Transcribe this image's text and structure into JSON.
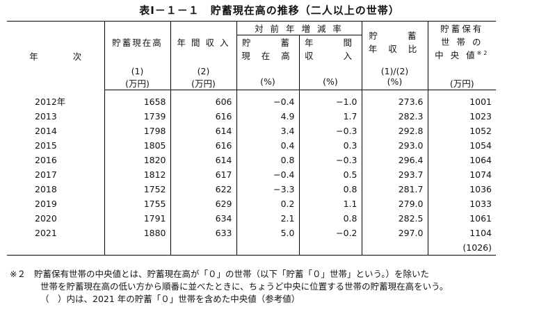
{
  "title": "表Ⅰ－１－１　貯蓄現在高の推移（二人以上の世帯）",
  "header": {
    "year_a": "年",
    "year_b": "次",
    "col_savings": "貯蓄現在高",
    "col_income": "年 間 収 入",
    "group_yoy": "対 前 年 増 減 率",
    "col_yoy_savings_1": "貯　　蓄",
    "col_yoy_savings_2": "現 在 高",
    "col_yoy_income_1": "年　　間",
    "col_yoy_income_2": "収　　入",
    "col_ratio_1": "貯　　蓄",
    "col_ratio_2": "年 収 比",
    "col_median_1": "貯蓄保有",
    "col_median_2": "世 帯 の",
    "col_median_3": "中 央 値",
    "col_median_note": "※2",
    "sub_savings": "(1)",
    "sub_income": "(2)",
    "sub_ratio": "(1)/(2)",
    "unit_savings": "(万円)",
    "unit_income": "(万円)",
    "unit_yoy_savings": "(%)",
    "unit_yoy_income": "(%)",
    "unit_ratio": "(%)",
    "unit_median": "(万円)"
  },
  "rows": [
    {
      "year": "2012年",
      "savings": "1658",
      "income": "606",
      "yoy_savings": "−0.4",
      "yoy_income": "−1.0",
      "ratio": "273.6",
      "median": "1001"
    },
    {
      "year": "2013",
      "savings": "1739",
      "income": "616",
      "yoy_savings": "4.9",
      "yoy_income": "1.7",
      "ratio": "282.3",
      "median": "1023"
    },
    {
      "year": "2014",
      "savings": "1798",
      "income": "614",
      "yoy_savings": "3.4",
      "yoy_income": "−0.3",
      "ratio": "292.8",
      "median": "1052"
    },
    {
      "year": "2015",
      "savings": "1805",
      "income": "616",
      "yoy_savings": "0.4",
      "yoy_income": "0.3",
      "ratio": "293.0",
      "median": "1054"
    },
    {
      "year": "2016",
      "savings": "1820",
      "income": "614",
      "yoy_savings": "0.8",
      "yoy_income": "−0.3",
      "ratio": "296.4",
      "median": "1064"
    },
    {
      "year": "2017",
      "savings": "1812",
      "income": "617",
      "yoy_savings": "−0.4",
      "yoy_income": "0.5",
      "ratio": "293.7",
      "median": "1074"
    },
    {
      "year": "2018",
      "savings": "1752",
      "income": "622",
      "yoy_savings": "−3.3",
      "yoy_income": "0.8",
      "ratio": "281.7",
      "median": "1036"
    },
    {
      "year": "2019",
      "savings": "1755",
      "income": "629",
      "yoy_savings": "0.2",
      "yoy_income": "1.1",
      "ratio": "279.0",
      "median": "1033"
    },
    {
      "year": "2020",
      "savings": "1791",
      "income": "634",
      "yoy_savings": "2.1",
      "yoy_income": "0.8",
      "ratio": "282.5",
      "median": "1061"
    },
    {
      "year": "2021",
      "savings": "1880",
      "income": "633",
      "yoy_savings": "5.0",
      "yoy_income": "−0.2",
      "ratio": "297.0",
      "median": "1104"
    }
  ],
  "median_2021_incl_zero": "(1026)",
  "notes": {
    "marker": "※２",
    "line1": "貯蓄保有世帯の中央値とは、貯蓄現在高が「０」の世帯（以下「貯蓄「０」世帯」という。）を除いた",
    "line2": "世帯を貯蓄現在高の低い方から順番に並べたときに、ちょうど中央に位置する世帯の貯蓄現在高をいう。",
    "line3": "（　）内は、2021 年の貯蓄「０」世帯を含めた中央値（参考値）"
  }
}
